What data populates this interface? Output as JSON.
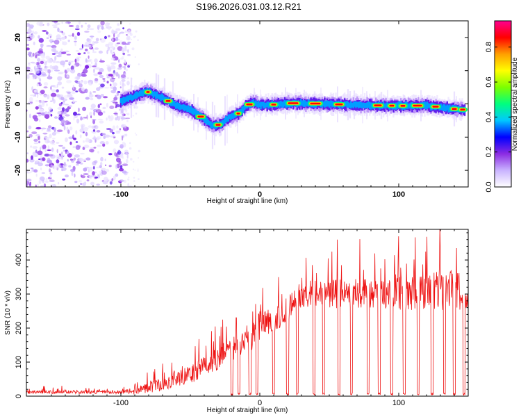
{
  "title": "S196.2026.031.03.12.R21",
  "chart_data": [
    {
      "type": "heatmap",
      "name": "spectrogram",
      "xlabel": "Height of straight line (km)",
      "ylabel": "Frequency (Hz)",
      "xlim": [
        -168,
        150
      ],
      "ylim": [
        -25,
        25
      ],
      "xticks": [
        -100,
        0,
        100
      ],
      "yticks": [
        -20,
        -10,
        0,
        10,
        20
      ],
      "colorbar": {
        "label": "Normalized spectral amplitude",
        "range": [
          0,
          0.95
        ],
        "ticks": [
          0.0,
          0.2,
          0.4,
          0.6,
          0.8
        ],
        "colors": [
          "#ffffff",
          "#c9b3ff",
          "#8b2be2",
          "#0000ff",
          "#00c8ff",
          "#00ff7f",
          "#7cff00",
          "#ffff00",
          "#ff9f00",
          "#ff0000",
          "#ff0090"
        ]
      },
      "noise_region_x": [
        -168,
        -98
      ],
      "signal_track": {
        "x": [
          -100,
          -90,
          -82,
          -76,
          -70,
          -60,
          -50,
          -40,
          -34,
          -28,
          -22,
          -15,
          -10,
          -5,
          0,
          10,
          20,
          40,
          60,
          80,
          100,
          120,
          140,
          148
        ],
        "frequency": [
          0.8,
          2.2,
          3.8,
          2.9,
          1.8,
          -0.5,
          -1.8,
          -4.5,
          -6.5,
          -6.2,
          -4.0,
          -2.8,
          -0.8,
          0.5,
          -0.3,
          -0.2,
          0.2,
          0.1,
          -0.2,
          -0.4,
          -0.6,
          -0.5,
          -1.5,
          -1.8
        ]
      },
      "peak_segments_x": [
        [
          -82,
          -79
        ],
        [
          -68,
          -64
        ],
        [
          -45,
          -40
        ],
        [
          -32,
          -28
        ],
        [
          -17,
          -14
        ],
        [
          -10,
          -5
        ],
        [
          8,
          12
        ],
        [
          20,
          28
        ],
        [
          36,
          44
        ],
        [
          54,
          60
        ],
        [
          82,
          88
        ],
        [
          93,
          97
        ],
        [
          101,
          105
        ],
        [
          110,
          117
        ],
        [
          124,
          129
        ],
        [
          138,
          142
        ],
        [
          144,
          148
        ]
      ]
    },
    {
      "type": "line",
      "name": "snr",
      "xlabel": "Height of straight line (km)",
      "ylabel": "SNR (10 * v/v)",
      "xlim": [
        -168,
        150
      ],
      "ylim": [
        0,
        490
      ],
      "xticks": [
        -100,
        0,
        100
      ],
      "yticks": [
        0,
        100,
        200,
        300,
        400
      ],
      "color": "#ee1111",
      "envelope": {
        "x": [
          -168,
          -100,
          -90,
          -80,
          -70,
          -60,
          -50,
          -40,
          -30,
          -20,
          -10,
          0,
          10,
          20,
          30,
          40,
          60,
          80,
          100,
          120,
          140,
          150
        ],
        "baseline": [
          12,
          12,
          15,
          25,
          35,
          50,
          65,
          85,
          110,
          140,
          170,
          200,
          220,
          265,
          300,
          305,
          300,
          300,
          300,
          305,
          315,
          290
        ],
        "amplitude": [
          10,
          10,
          20,
          30,
          40,
          45,
          55,
          60,
          70,
          80,
          90,
          100,
          80,
          90,
          80,
          80,
          90,
          90,
          100,
          110,
          120,
          110
        ]
      },
      "dropout_x": [
        -20,
        -15,
        -7,
        -2,
        10,
        20,
        27,
        39,
        46,
        57,
        66,
        78,
        86,
        95,
        104,
        114,
        124,
        133,
        140,
        147
      ]
    }
  ]
}
